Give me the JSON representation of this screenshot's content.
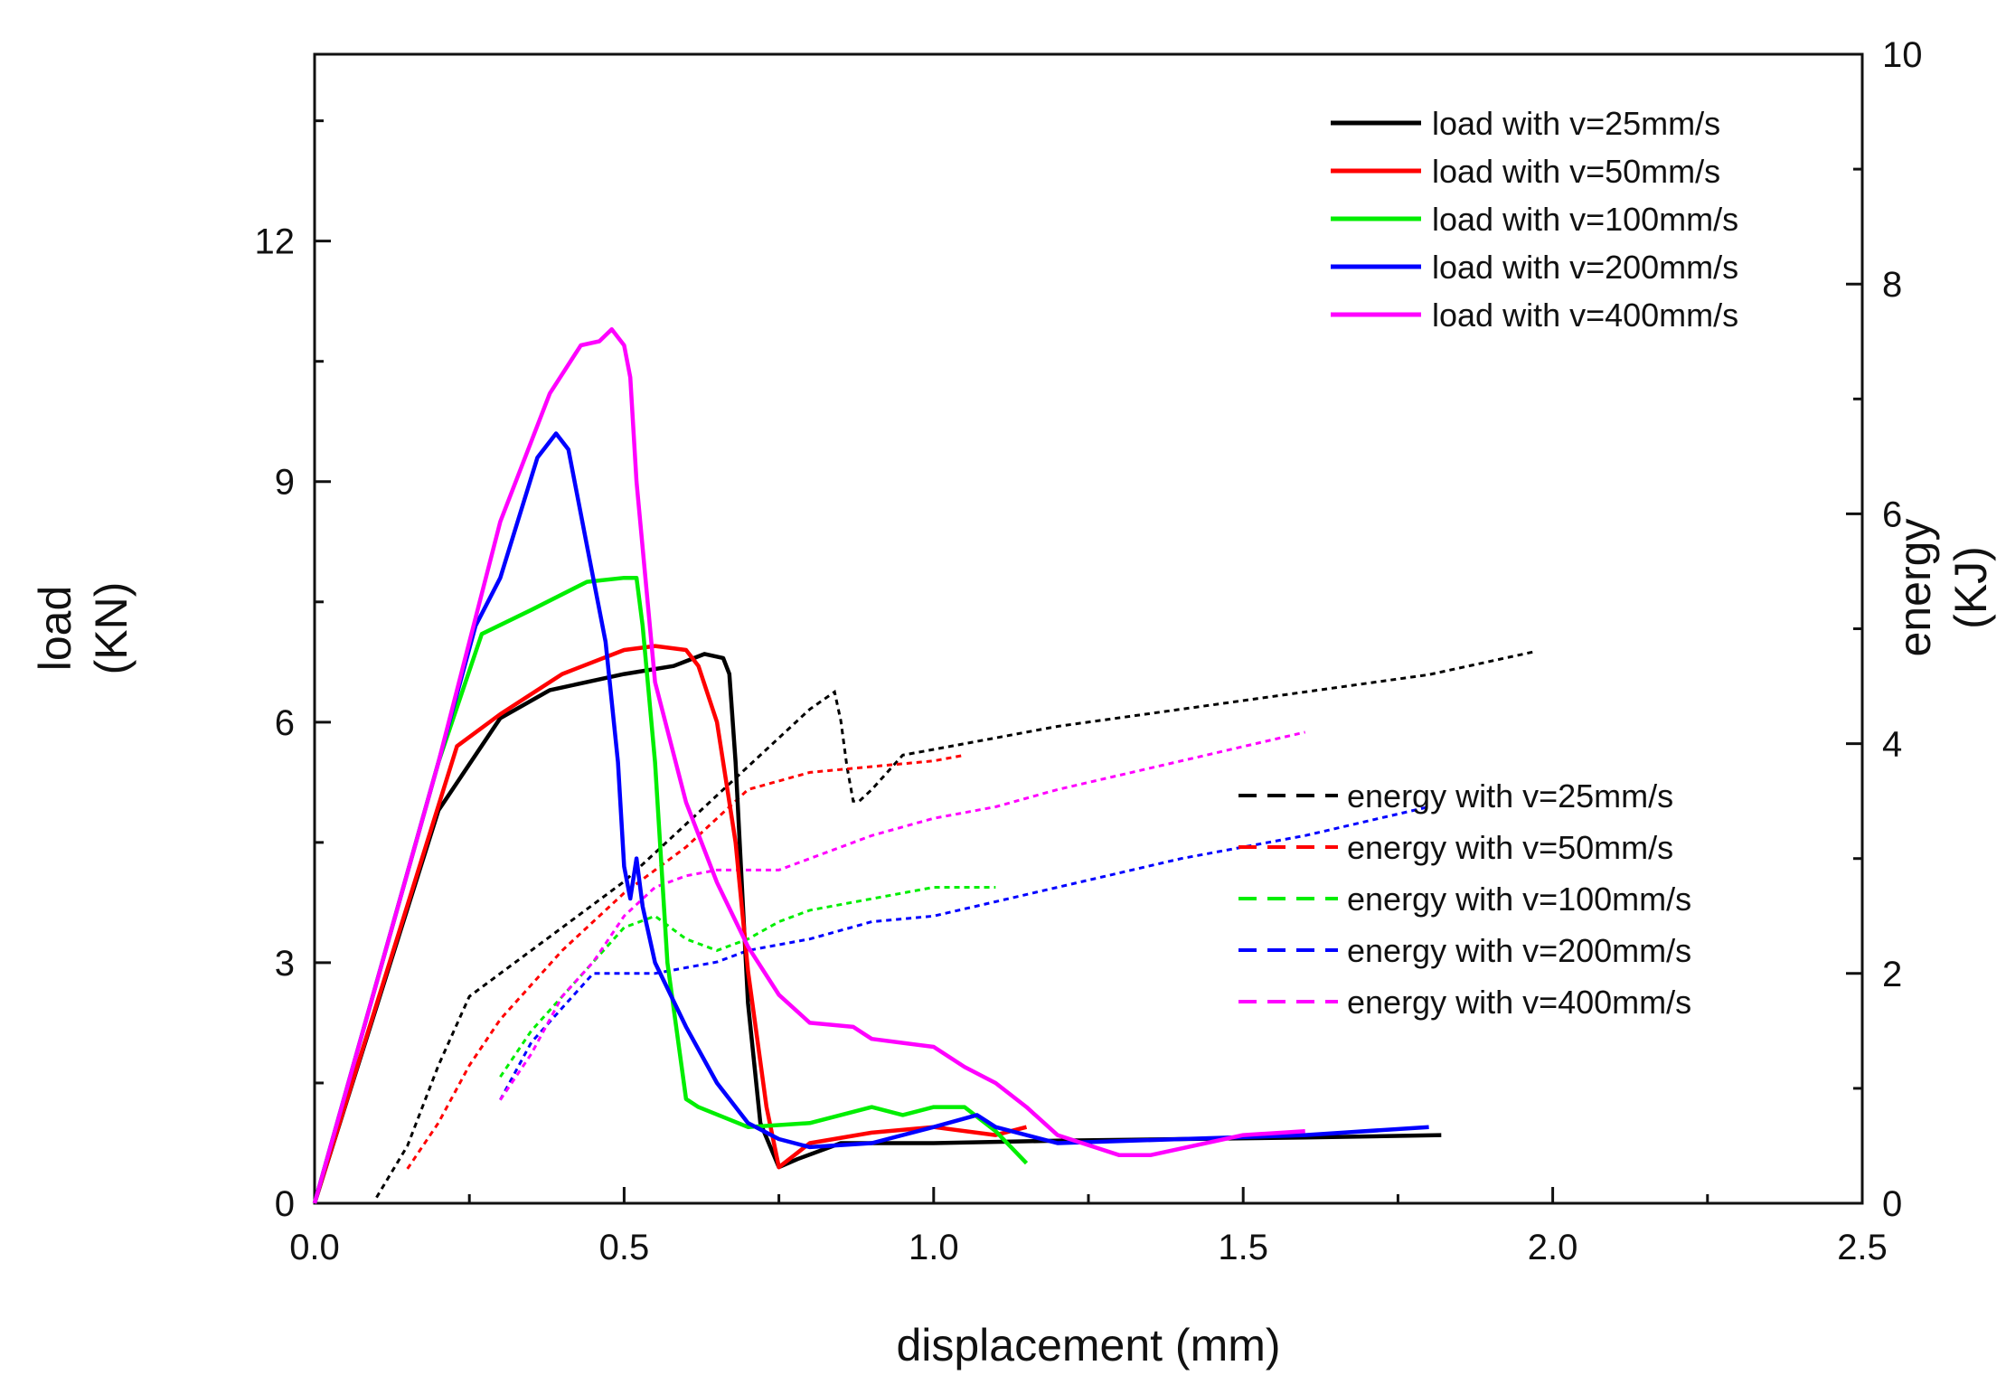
{
  "chart_data": {
    "type": "line",
    "title": "",
    "xlabel": "displacement (mm)",
    "ylabel_left": [
      "load",
      "(KN)"
    ],
    "ylabel_right": [
      "energy",
      "(KJ)"
    ],
    "xlim": [
      0,
      2.5
    ],
    "ylim_left": [
      0,
      14.33
    ],
    "ylim_right": [
      0,
      10
    ],
    "x_ticks": [
      "0.0",
      "0.5",
      "1.0",
      "1.5",
      "2.0",
      "2.5"
    ],
    "y_left_ticks": [
      "0",
      "3",
      "6",
      "9",
      "12"
    ],
    "y_right_ticks": [
      "0",
      "2",
      "4",
      "6",
      "8",
      "10"
    ],
    "grid": false,
    "legend_load_position": "top-right",
    "legend_energy_position": "middle-right",
    "load_series": [
      {
        "name": "load with v=25mm/s",
        "color": "#000000",
        "x": [
          0,
          0.2,
          0.3,
          0.38,
          0.5,
          0.58,
          0.63,
          0.66,
          0.67,
          0.68,
          0.69,
          0.7,
          0.72,
          0.75,
          0.78,
          0.85,
          1.0,
          1.2,
          1.4,
          1.6,
          1.82
        ],
        "y": [
          0,
          4.9,
          6.05,
          6.4,
          6.6,
          6.7,
          6.85,
          6.8,
          6.6,
          5.5,
          4.0,
          2.5,
          1.0,
          0.45,
          0.55,
          0.75,
          0.75,
          0.78,
          0.8,
          0.82,
          0.85
        ]
      },
      {
        "name": "load with v=50mm/s",
        "color": "#ff0000",
        "x": [
          0,
          0.23,
          0.3,
          0.4,
          0.5,
          0.55,
          0.6,
          0.62,
          0.65,
          0.68,
          0.7,
          0.73,
          0.75,
          0.8,
          0.9,
          1.0,
          1.1,
          1.15
        ],
        "y": [
          0,
          5.7,
          6.1,
          6.6,
          6.9,
          6.95,
          6.9,
          6.7,
          6.0,
          4.5,
          2.9,
          1.2,
          0.45,
          0.75,
          0.88,
          0.95,
          0.85,
          0.95
        ]
      },
      {
        "name": "load with v=100mm/s",
        "color": "#00ee00",
        "x": [
          0,
          0.2,
          0.27,
          0.35,
          0.44,
          0.5,
          0.52,
          0.53,
          0.55,
          0.57,
          0.6,
          0.62,
          0.7,
          0.8,
          0.9,
          0.95,
          1.0,
          1.05,
          1.1,
          1.15
        ],
        "y": [
          0,
          5.5,
          7.1,
          7.4,
          7.75,
          7.8,
          7.8,
          7.2,
          5.5,
          3.0,
          1.3,
          1.2,
          0.95,
          1.0,
          1.2,
          1.1,
          1.2,
          1.2,
          0.9,
          0.5
        ]
      },
      {
        "name": "load with v=200mm/s",
        "color": "#0000ff",
        "x": [
          0,
          0.2,
          0.26,
          0.3,
          0.36,
          0.39,
          0.41,
          0.44,
          0.47,
          0.49,
          0.5,
          0.51,
          0.52,
          0.53,
          0.55,
          0.6,
          0.65,
          0.7,
          0.75,
          0.8,
          0.9,
          1.0,
          1.07,
          1.1,
          1.2,
          1.4,
          1.6,
          1.8
        ],
        "y": [
          0,
          5.5,
          7.2,
          7.8,
          9.3,
          9.6,
          9.4,
          8.2,
          7.0,
          5.5,
          4.2,
          3.8,
          4.3,
          3.7,
          3.0,
          2.2,
          1.5,
          1.0,
          0.8,
          0.7,
          0.75,
          0.95,
          1.1,
          0.95,
          0.75,
          0.8,
          0.85,
          0.95
        ]
      },
      {
        "name": "load with v=400mm/s",
        "color": "#ff00ff",
        "x": [
          0,
          0.2,
          0.3,
          0.38,
          0.43,
          0.46,
          0.48,
          0.5,
          0.51,
          0.52,
          0.55,
          0.6,
          0.65,
          0.7,
          0.75,
          0.8,
          0.87,
          0.9,
          0.95,
          1.0,
          1.05,
          1.1,
          1.15,
          1.2,
          1.3,
          1.35,
          1.5,
          1.6
        ],
        "y": [
          0,
          5.5,
          8.5,
          10.1,
          10.7,
          10.75,
          10.9,
          10.7,
          10.3,
          9.0,
          6.5,
          5.0,
          4.0,
          3.2,
          2.6,
          2.25,
          2.2,
          2.05,
          2.0,
          1.95,
          1.7,
          1.5,
          1.2,
          0.85,
          0.6,
          0.6,
          0.85,
          0.9
        ]
      }
    ],
    "energy_series": [
      {
        "name": "energy with v=25mm/s",
        "color": "#000000",
        "x": [
          0.1,
          0.15,
          0.2,
          0.25,
          0.3,
          0.4,
          0.5,
          0.6,
          0.7,
          0.8,
          0.84,
          0.85,
          0.86,
          0.87,
          0.88,
          0.9,
          0.95,
          1.0,
          1.2,
          1.4,
          1.6,
          1.8,
          1.97
        ],
        "y": [
          0.05,
          0.5,
          1.2,
          1.8,
          2.0,
          2.4,
          2.8,
          3.3,
          3.8,
          4.3,
          4.45,
          4.2,
          3.8,
          3.5,
          3.5,
          3.6,
          3.9,
          3.95,
          4.15,
          4.3,
          4.45,
          4.6,
          4.8
        ]
      },
      {
        "name": "energy with v=50mm/s",
        "color": "#ff0000",
        "x": [
          0.15,
          0.2,
          0.25,
          0.3,
          0.4,
          0.5,
          0.6,
          0.7,
          0.8,
          0.9,
          1.0,
          1.05
        ],
        "y": [
          0.3,
          0.7,
          1.2,
          1.6,
          2.2,
          2.7,
          3.1,
          3.6,
          3.75,
          3.8,
          3.85,
          3.9
        ]
      },
      {
        "name": "energy with v=100mm/s",
        "color": "#00ee00",
        "x": [
          0.3,
          0.35,
          0.4,
          0.45,
          0.5,
          0.55,
          0.6,
          0.65,
          0.7,
          0.75,
          0.8,
          0.9,
          1.0,
          1.1
        ],
        "y": [
          1.1,
          1.5,
          1.8,
          2.1,
          2.4,
          2.5,
          2.3,
          2.2,
          2.3,
          2.45,
          2.55,
          2.65,
          2.75,
          2.75
        ]
      },
      {
        "name": "energy with v=200mm/s",
        "color": "#0000ff",
        "x": [
          0.3,
          0.35,
          0.4,
          0.45,
          0.5,
          0.55,
          0.6,
          0.65,
          0.7,
          0.75,
          0.8,
          0.9,
          1.0,
          1.2,
          1.4,
          1.6,
          1.8
        ],
        "y": [
          0.9,
          1.4,
          1.7,
          2.0,
          2.0,
          2.0,
          2.05,
          2.1,
          2.2,
          2.25,
          2.3,
          2.45,
          2.5,
          2.75,
          3.0,
          3.2,
          3.45
        ]
      },
      {
        "name": "energy with v=400mm/s",
        "color": "#ff00ff",
        "x": [
          0.3,
          0.35,
          0.4,
          0.45,
          0.5,
          0.55,
          0.6,
          0.65,
          0.7,
          0.75,
          0.8,
          0.85,
          0.9,
          1.0,
          1.1,
          1.2,
          1.4,
          1.6
        ],
        "y": [
          0.9,
          1.3,
          1.8,
          2.1,
          2.5,
          2.75,
          2.85,
          2.9,
          2.9,
          2.9,
          3.0,
          3.1,
          3.2,
          3.35,
          3.45,
          3.6,
          3.85,
          4.1
        ]
      }
    ]
  }
}
